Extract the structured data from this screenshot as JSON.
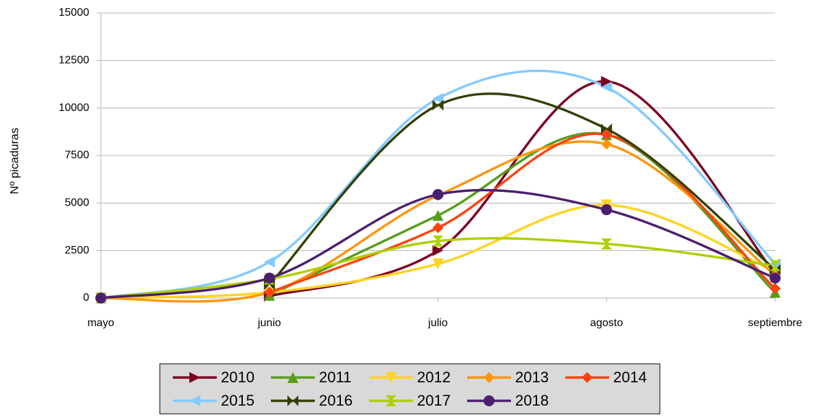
{
  "chart_data": {
    "type": "line",
    "y_label": "Nº picaduras",
    "categories": [
      "mayo",
      "junio",
      "julio",
      "agosto",
      "septiembre"
    ],
    "ylim": [
      0,
      15000
    ],
    "yticks": [
      0,
      2500,
      5000,
      7500,
      10000,
      12500,
      15000
    ],
    "grid": true,
    "smooth": true,
    "legend": "bottom",
    "series": [
      {
        "name": "2010",
        "color": "#7b0022",
        "marker": "triangle-right",
        "values": [
          null,
          100,
          2500,
          11400,
          1300
        ]
      },
      {
        "name": "2011",
        "color": "#579d1c",
        "marker": "triangle-up",
        "values": [
          null,
          150,
          4350,
          8600,
          300
        ]
      },
      {
        "name": "2012",
        "color": "#ffd320",
        "marker": "triangle-down",
        "values": [
          0,
          300,
          1800,
          4900,
          1400
        ]
      },
      {
        "name": "2013",
        "color": "#ff950e",
        "marker": "diamond",
        "values": [
          0,
          300,
          5400,
          8100,
          1200
        ]
      },
      {
        "name": "2014",
        "color": "#ff420e",
        "marker": "diamond",
        "values": [
          null,
          300,
          3700,
          8600,
          500
        ]
      },
      {
        "name": "2015",
        "color": "#83caff",
        "marker": "triangle-left",
        "values": [
          0,
          1900,
          10500,
          11100,
          1800
        ]
      },
      {
        "name": "2016",
        "color": "#314004",
        "marker": "bowtie",
        "values": [
          null,
          700,
          10150,
          8900,
          1500
        ]
      },
      {
        "name": "2017",
        "color": "#aecf00",
        "marker": "hourglass",
        "values": [
          0,
          1000,
          3000,
          2850,
          1700
        ]
      },
      {
        "name": "2018",
        "color": "#4b1f6f",
        "marker": "circle",
        "values": [
          0,
          1050,
          5450,
          4650,
          1050
        ]
      }
    ]
  }
}
